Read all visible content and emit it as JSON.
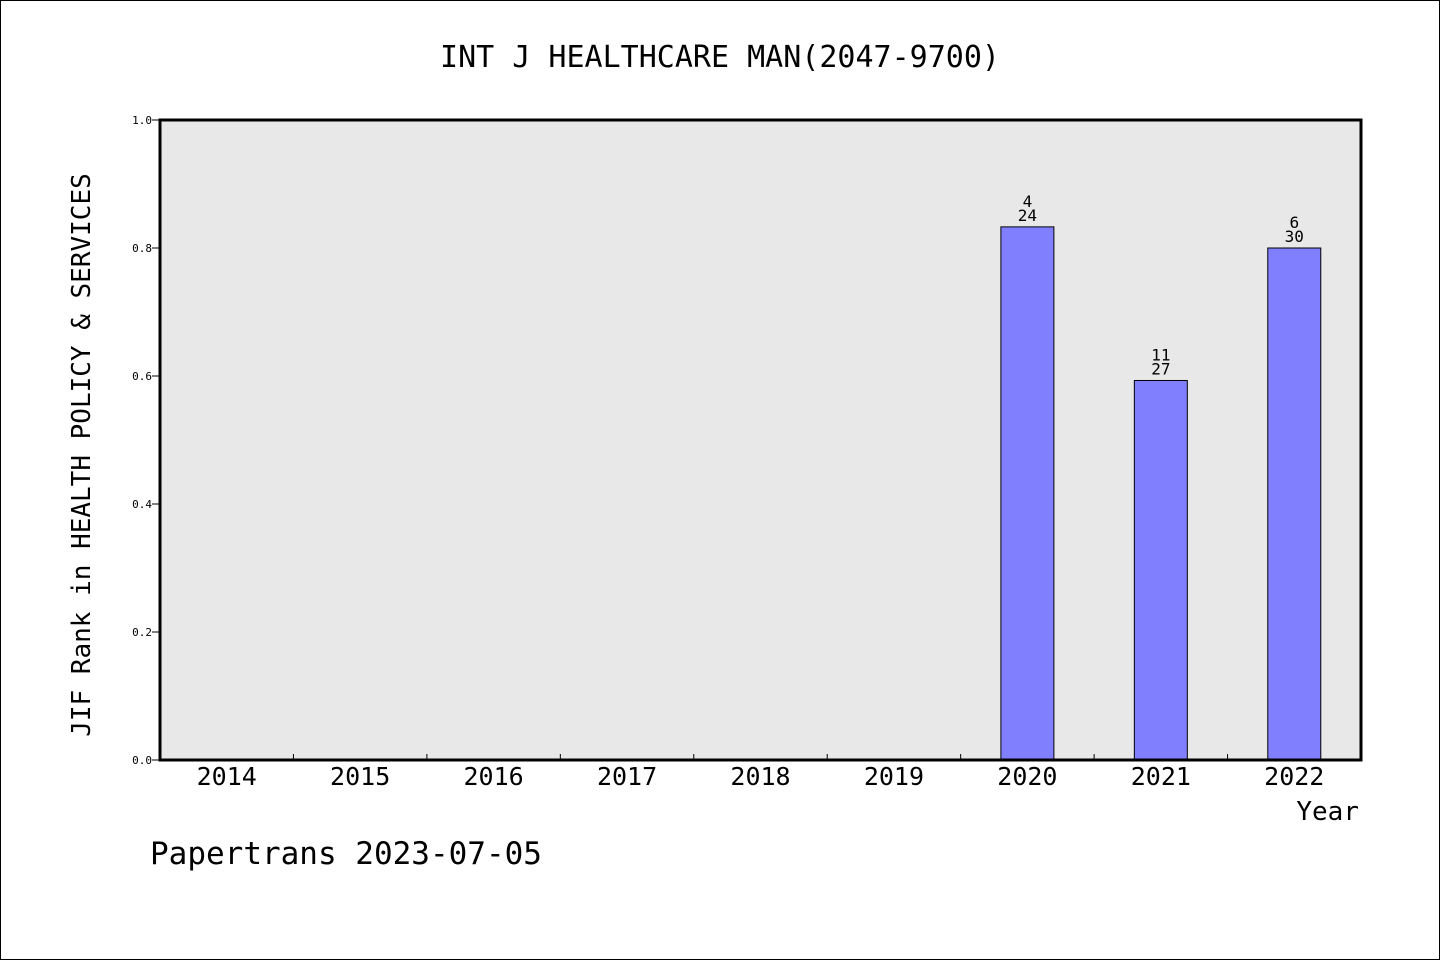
{
  "chart_data": {
    "type": "bar",
    "title": "INT J HEALTHCARE MAN(2047-9700)",
    "xlabel": "Year",
    "ylabel": "JIF Rank in HEALTH POLICY & SERVICES",
    "categories": [
      "2014",
      "2015",
      "2016",
      "2017",
      "2018",
      "2019",
      "2020",
      "2021",
      "2022"
    ],
    "values": [
      null,
      null,
      null,
      null,
      null,
      null,
      0.833,
      0.593,
      0.8
    ],
    "rank_labels": [
      null,
      null,
      null,
      null,
      null,
      null,
      {
        "rank": "4",
        "total": "24"
      },
      {
        "rank": "11",
        "total": "27"
      },
      {
        "rank": "6",
        "total": "30"
      }
    ],
    "ylim": [
      0,
      1
    ],
    "yticks": [
      "0.0",
      "0.2",
      "0.4",
      "0.6",
      "0.8",
      "1.0"
    ],
    "grid": false,
    "colors": {
      "bar_fill": "#8080ff",
      "plot_background": "#e8e8e8"
    }
  },
  "footer": {
    "text": "Papertrans 2023-07-05"
  }
}
